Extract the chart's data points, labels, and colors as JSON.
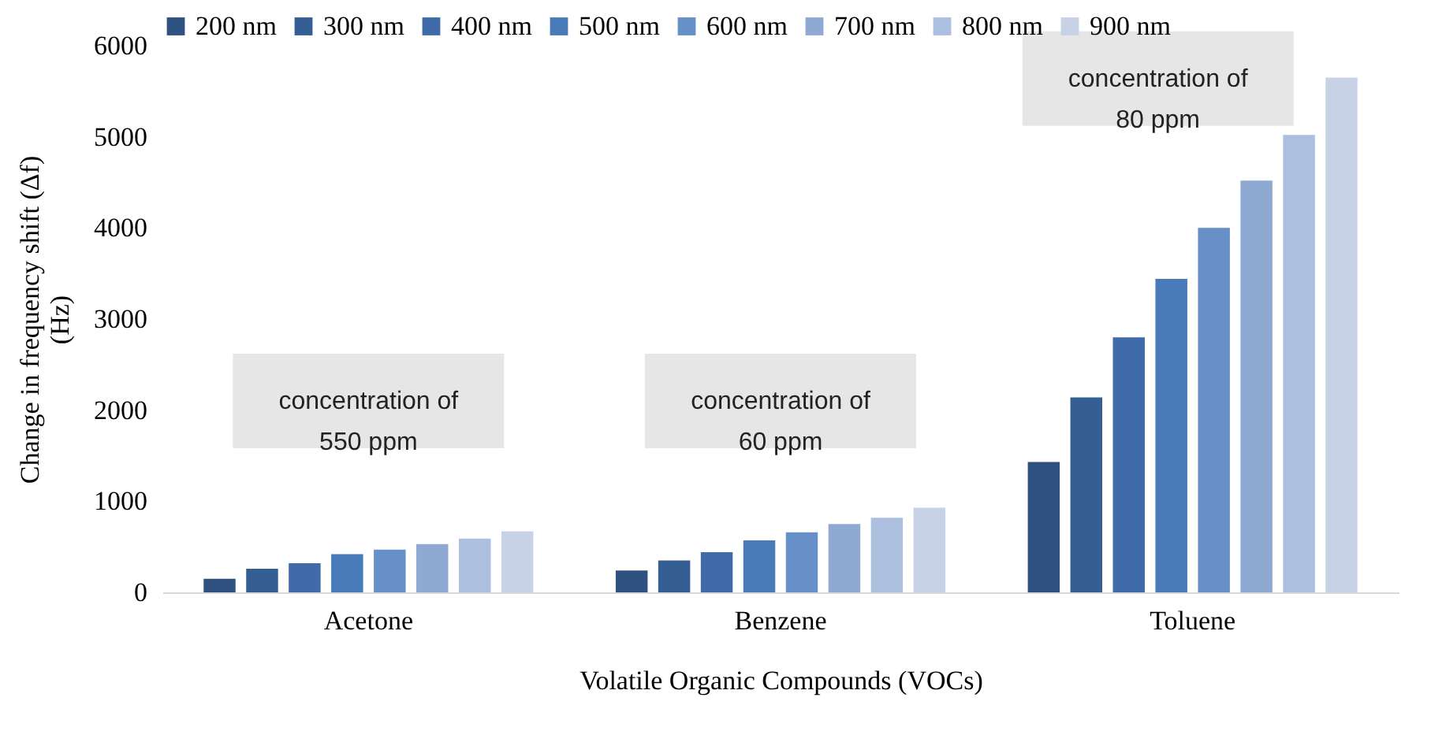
{
  "chart_data": {
    "type": "bar",
    "xlabel": "Volatile Organic Compounds (VOCs)",
    "ylabel": "Change in frequency shift (Δf) (Hz)",
    "categories": [
      "Acetone",
      "Benzene",
      "Toluene"
    ],
    "series": [
      {
        "name": "200 nm",
        "color": "#2f5180",
        "values": [
          150,
          240,
          1430
        ]
      },
      {
        "name": "300 nm",
        "color": "#355f94",
        "values": [
          260,
          350,
          2140
        ]
      },
      {
        "name": "400 nm",
        "color": "#3f6ba8",
        "values": [
          320,
          440,
          2800
        ]
      },
      {
        "name": "500 nm",
        "color": "#4a7bb9",
        "values": [
          420,
          570,
          3440
        ]
      },
      {
        "name": "600 nm",
        "color": "#6890c8",
        "values": [
          470,
          660,
          4000
        ]
      },
      {
        "name": "700 nm",
        "color": "#8ea9d2",
        "values": [
          530,
          750,
          4520
        ]
      },
      {
        "name": "800 nm",
        "color": "#adbfdf",
        "values": [
          590,
          820,
          5020
        ]
      },
      {
        "name": "900 nm",
        "color": "#c8d2e6",
        "values": [
          670,
          930,
          5650
        ]
      }
    ],
    "ylim": [
      0,
      6000
    ],
    "yticks": [
      0,
      {
        "value": 1000,
        "label": "1000"
      },
      {
        "value": 2000,
        "label": "2000"
      },
      {
        "value": 3000,
        "label": "3000"
      },
      {
        "value": 4000,
        "label": "4000"
      },
      {
        "value": 5000,
        "label": "5000"
      },
      {
        "value": 6000,
        "label": "6000"
      }
    ],
    "grid": false,
    "legend": "top",
    "annotations": [
      "concentration of 550 ppm",
      "concentration of 60 ppm",
      "concentration of 80 ppm"
    ]
  }
}
